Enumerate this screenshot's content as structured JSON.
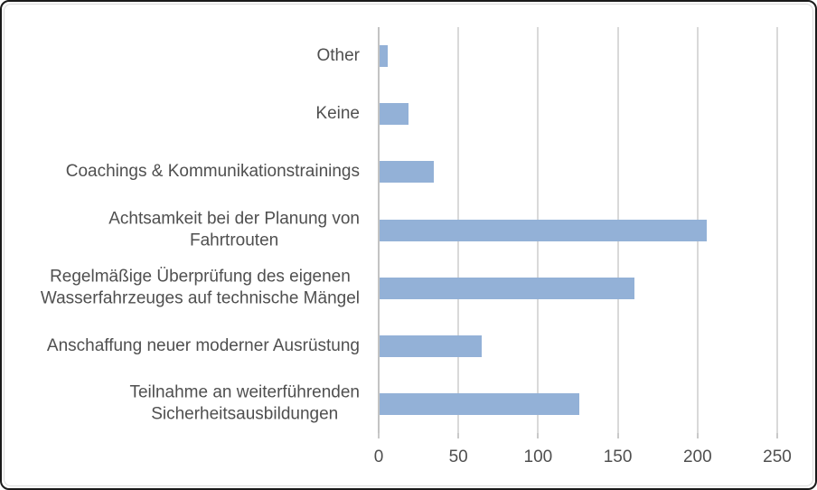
{
  "chart_data": {
    "type": "bar",
    "orientation": "horizontal",
    "title": "",
    "xlabel": "",
    "ylabel": "",
    "categories": [
      "Other",
      "Keine",
      "Coachings & Kommunikationstrainings",
      "Achtsamkeit bei der Planung von\nFahrtrouten",
      "Regelmäßige Überprüfung des eigenen\nWasserfahrzeuges auf technische Mängel",
      "Anschaffung neuer moderner Ausrüstung",
      "Teilnahme an weiterführenden\nSicherheitsausbildungen"
    ],
    "values": [
      5,
      18,
      34,
      205,
      160,
      64,
      125
    ],
    "xlim": [
      0,
      250
    ],
    "xticks": [
      0,
      50,
      100,
      150,
      200,
      250
    ],
    "xtick_labels": [
      "0",
      "50",
      "100",
      "150",
      "200",
      "250"
    ],
    "grid": true,
    "legend": "none",
    "colors": {
      "bar_fill": "#93b1d7",
      "gridline": "#d9d9d9",
      "axis_line": "#c3c3c3",
      "text": "#4f4f4f",
      "frame_border": "#1a1a1a",
      "chart_border": "#dcdcdc",
      "background": "#ffffff"
    }
  }
}
